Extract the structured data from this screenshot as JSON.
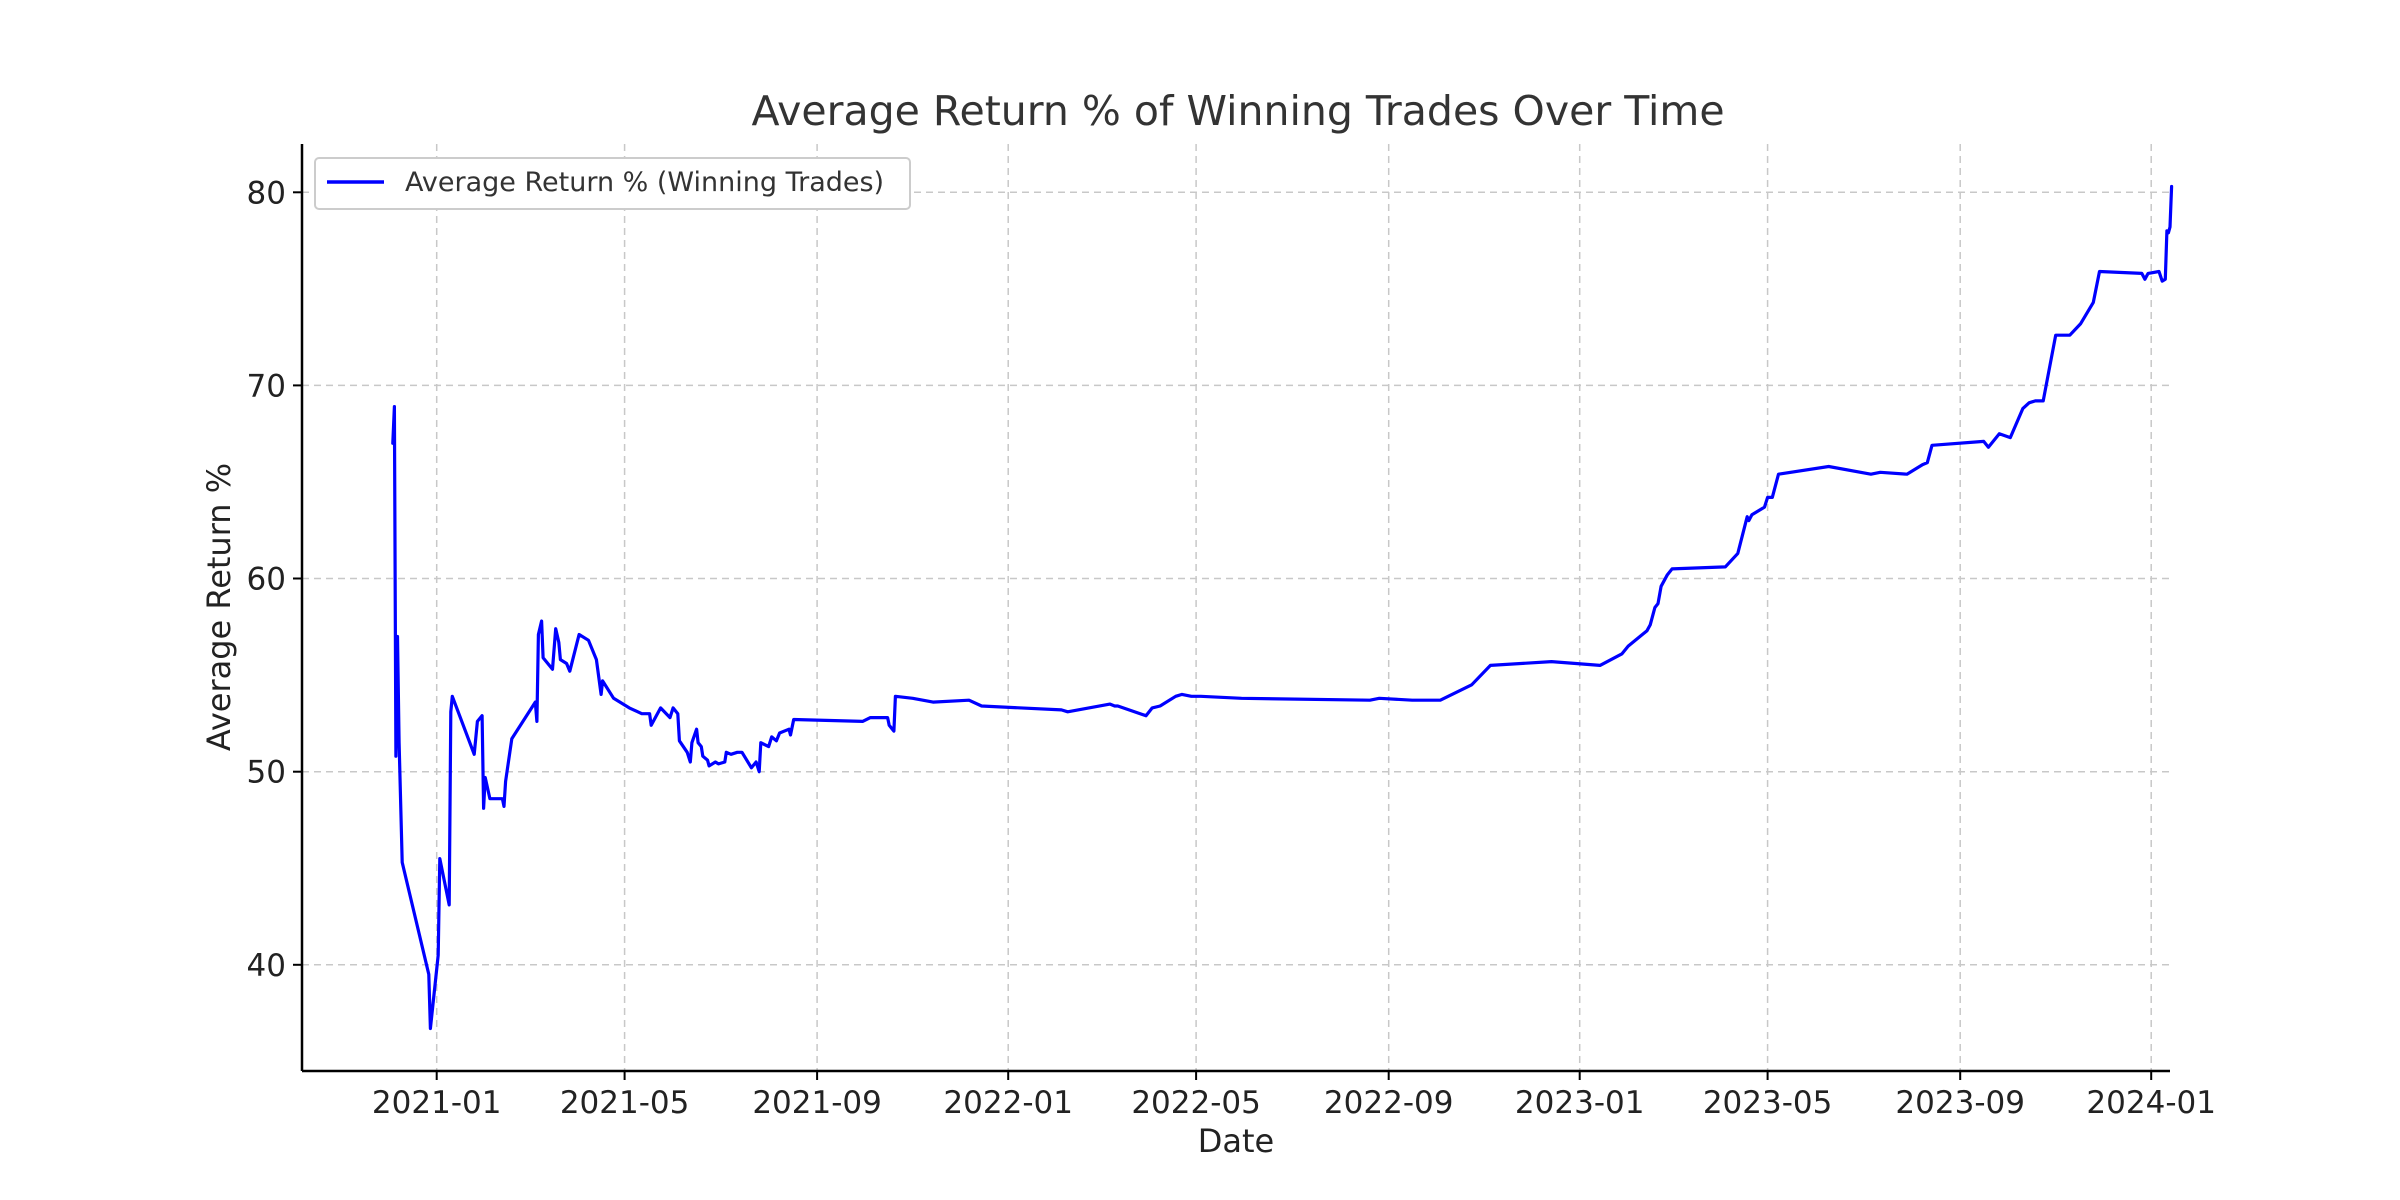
{
  "chart_data": {
    "type": "line",
    "title": "Average Return % of Winning Trades Over Time",
    "xlabel": "Date",
    "ylabel": "Average Return %",
    "x_ticks": [
      "2021-01",
      "2021-05",
      "2021-09",
      "2022-01",
      "2022-05",
      "2022-09",
      "2023-01",
      "2023-05",
      "2023-09",
      "2024-01"
    ],
    "y_ticks": [
      40,
      50,
      60,
      70,
      80
    ],
    "xlim": [
      "2020-10-07",
      "2024-01-13"
    ],
    "ylim": [
      34.5,
      82.5
    ],
    "grid": true,
    "legend_position": "top-left",
    "colors": {
      "line": "#0000ff",
      "axis": "#000000",
      "grid": "#c8c8c8"
    },
    "series": [
      {
        "name": "Average Return % (Winning Trades)",
        "points": [
          [
            "2020-12-04",
            67.0
          ],
          [
            "2020-12-05",
            68.9
          ],
          [
            "2020-12-06",
            50.8
          ],
          [
            "2020-12-07",
            57.0
          ],
          [
            "2020-12-08",
            51.5
          ],
          [
            "2020-12-10",
            45.3
          ],
          [
            "2020-12-27",
            39.5
          ],
          [
            "2020-12-28",
            36.7
          ],
          [
            "2021-01-02",
            40.5
          ],
          [
            "2021-01-03",
            45.5
          ],
          [
            "2021-01-09",
            43.1
          ],
          [
            "2021-01-10",
            53.1
          ],
          [
            "2021-01-11",
            53.9
          ],
          [
            "2021-01-25",
            50.9
          ],
          [
            "2021-01-27",
            52.6
          ],
          [
            "2021-01-30",
            52.9
          ],
          [
            "2021-01-31",
            48.1
          ],
          [
            "2021-02-01",
            49.7
          ],
          [
            "2021-02-04",
            48.6
          ],
          [
            "2021-02-12",
            48.6
          ],
          [
            "2021-02-13",
            48.2
          ],
          [
            "2021-02-14",
            49.5
          ],
          [
            "2021-02-18",
            51.7
          ],
          [
            "2021-03-05",
            53.6
          ],
          [
            "2021-03-06",
            52.6
          ],
          [
            "2021-03-07",
            57.1
          ],
          [
            "2021-03-09",
            57.8
          ],
          [
            "2021-03-10",
            55.9
          ],
          [
            "2021-03-16",
            55.3
          ],
          [
            "2021-03-18",
            57.4
          ],
          [
            "2021-03-20",
            56.7
          ],
          [
            "2021-03-21",
            55.8
          ],
          [
            "2021-03-25",
            55.6
          ],
          [
            "2021-03-27",
            55.2
          ],
          [
            "2021-04-02",
            57.1
          ],
          [
            "2021-04-08",
            56.8
          ],
          [
            "2021-04-13",
            55.8
          ],
          [
            "2021-04-16",
            54.0
          ],
          [
            "2021-04-17",
            54.7
          ],
          [
            "2021-04-24",
            53.8
          ],
          [
            "2021-05-04",
            53.3
          ],
          [
            "2021-05-12",
            53.0
          ],
          [
            "2021-05-17",
            53.0
          ],
          [
            "2021-05-18",
            52.4
          ],
          [
            "2021-05-24",
            53.3
          ],
          [
            "2021-05-30",
            52.8
          ],
          [
            "2021-06-01",
            53.3
          ],
          [
            "2021-06-04",
            53.0
          ],
          [
            "2021-06-05",
            51.6
          ],
          [
            "2021-06-10",
            51.0
          ],
          [
            "2021-06-12",
            50.5
          ],
          [
            "2021-06-13",
            51.5
          ],
          [
            "2021-06-16",
            52.2
          ],
          [
            "2021-06-17",
            51.5
          ],
          [
            "2021-06-19",
            51.3
          ],
          [
            "2021-06-20",
            50.8
          ],
          [
            "2021-06-23",
            50.6
          ],
          [
            "2021-06-24",
            50.3
          ],
          [
            "2021-06-28",
            50.5
          ],
          [
            "2021-06-30",
            50.4
          ],
          [
            "2021-07-04",
            50.5
          ],
          [
            "2021-07-05",
            51.0
          ],
          [
            "2021-07-08",
            50.9
          ],
          [
            "2021-07-12",
            51.0
          ],
          [
            "2021-07-15",
            51.0
          ],
          [
            "2021-07-18",
            50.6
          ],
          [
            "2021-07-21",
            50.2
          ],
          [
            "2021-07-24",
            50.5
          ],
          [
            "2021-07-26",
            50.0
          ],
          [
            "2021-07-27",
            51.5
          ],
          [
            "2021-08-01",
            51.3
          ],
          [
            "2021-08-03",
            51.8
          ],
          [
            "2021-08-06",
            51.6
          ],
          [
            "2021-08-08",
            52.0
          ],
          [
            "2021-08-14",
            52.2
          ],
          [
            "2021-08-15",
            51.9
          ],
          [
            "2021-08-17",
            52.7
          ],
          [
            "2021-09-30",
            52.6
          ],
          [
            "2021-10-05",
            52.8
          ],
          [
            "2021-10-16",
            52.8
          ],
          [
            "2021-10-17",
            52.4
          ],
          [
            "2021-10-20",
            52.1
          ],
          [
            "2021-10-21",
            53.9
          ],
          [
            "2021-11-01",
            53.8
          ],
          [
            "2021-11-14",
            53.6
          ],
          [
            "2021-12-07",
            53.7
          ],
          [
            "2021-12-15",
            53.4
          ],
          [
            "2022-02-04",
            53.2
          ],
          [
            "2022-02-08",
            53.1
          ],
          [
            "2022-03-07",
            53.5
          ],
          [
            "2022-03-10",
            53.4
          ],
          [
            "2022-03-12",
            53.4
          ],
          [
            "2022-03-30",
            52.9
          ],
          [
            "2022-04-03",
            53.3
          ],
          [
            "2022-04-08",
            53.4
          ],
          [
            "2022-04-18",
            53.9
          ],
          [
            "2022-04-22",
            54.0
          ],
          [
            "2022-04-28",
            53.9
          ],
          [
            "2022-05-04",
            53.9
          ],
          [
            "2022-05-30",
            53.8
          ],
          [
            "2022-08-20",
            53.7
          ],
          [
            "2022-08-26",
            53.8
          ],
          [
            "2022-09-16",
            53.7
          ],
          [
            "2022-09-23",
            53.7
          ],
          [
            "2022-10-04",
            53.7
          ],
          [
            "2022-10-24",
            54.5
          ],
          [
            "2022-11-05",
            55.5
          ],
          [
            "2022-12-14",
            55.7
          ],
          [
            "2023-01-14",
            55.5
          ],
          [
            "2023-01-28",
            56.1
          ],
          [
            "2023-02-01",
            56.5
          ],
          [
            "2023-02-13",
            57.3
          ],
          [
            "2023-02-15",
            57.6
          ],
          [
            "2023-02-18",
            58.5
          ],
          [
            "2023-02-20",
            58.7
          ],
          [
            "2023-02-22",
            59.6
          ],
          [
            "2023-02-26",
            60.2
          ],
          [
            "2023-03-01",
            60.5
          ],
          [
            "2023-04-04",
            60.6
          ],
          [
            "2023-04-12",
            61.3
          ],
          [
            "2023-04-18",
            63.2
          ],
          [
            "2023-04-19",
            63.0
          ],
          [
            "2023-04-21",
            63.3
          ],
          [
            "2023-04-29",
            63.7
          ],
          [
            "2023-05-01",
            64.2
          ],
          [
            "2023-05-04",
            64.2
          ],
          [
            "2023-05-08",
            65.4
          ],
          [
            "2023-06-09",
            65.8
          ],
          [
            "2023-07-06",
            65.4
          ],
          [
            "2023-07-12",
            65.5
          ],
          [
            "2023-07-29",
            65.4
          ],
          [
            "2023-08-08",
            65.9
          ],
          [
            "2023-08-11",
            66.0
          ],
          [
            "2023-08-14",
            66.9
          ],
          [
            "2023-09-16",
            67.1
          ],
          [
            "2023-09-19",
            66.8
          ],
          [
            "2023-09-26",
            67.5
          ],
          [
            "2023-10-03",
            67.3
          ],
          [
            "2023-10-11",
            68.8
          ],
          [
            "2023-10-15",
            69.1
          ],
          [
            "2023-10-19",
            69.2
          ],
          [
            "2023-10-24",
            69.2
          ],
          [
            "2023-11-01",
            72.6
          ],
          [
            "2023-11-10",
            72.6
          ],
          [
            "2023-11-17",
            73.2
          ],
          [
            "2023-11-25",
            74.3
          ],
          [
            "2023-11-29",
            75.9
          ],
          [
            "2023-12-26",
            75.8
          ],
          [
            "2023-12-28",
            75.5
          ],
          [
            "2023-12-30",
            75.8
          ],
          [
            "2024-01-06",
            75.9
          ],
          [
            "2024-01-08",
            75.4
          ],
          [
            "2024-01-10",
            75.5
          ],
          [
            "2024-01-11",
            78.0
          ],
          [
            "2024-01-12",
            77.9
          ],
          [
            "2024-01-13",
            78.2
          ],
          [
            "2024-01-14",
            80.3
          ]
        ]
      }
    ]
  }
}
